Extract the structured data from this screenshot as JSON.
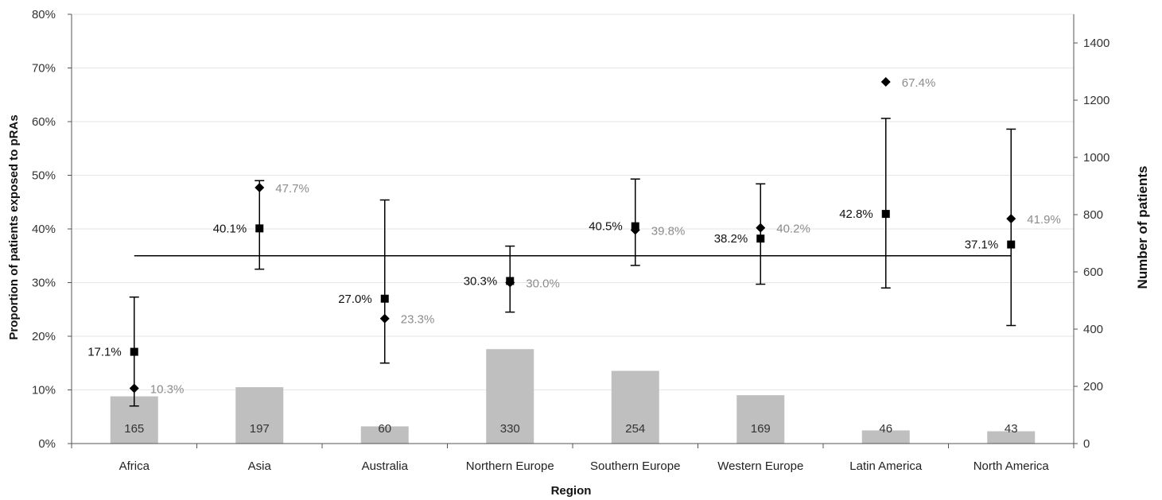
{
  "chart_data": {
    "type": "bar+scatter",
    "title": "",
    "xlabel": "Region",
    "ylabel_left": "Proportion of patients exposed to pRAs",
    "ylabel_right": "Number of patients",
    "ylim_left": [
      0,
      80
    ],
    "ylim_right": [
      0,
      1500
    ],
    "yticks_left": [
      "0%",
      "10%",
      "20%",
      "30%",
      "40%",
      "50%",
      "60%",
      "70%",
      "80%"
    ],
    "yticks_right": [
      "0",
      "200",
      "400",
      "600",
      "800",
      "1000",
      "1200",
      "1400"
    ],
    "categories": [
      "Africa",
      "Asia",
      "Australia",
      "Northern Europe",
      "Southern Europe",
      "Western Europe",
      "Latin America",
      "North America"
    ],
    "patient_counts": [
      165,
      197,
      60,
      330,
      254,
      169,
      46,
      43
    ],
    "patient_count_labels": [
      "165",
      "197",
      "60",
      "330",
      "254",
      "169",
      "46",
      "43"
    ],
    "adjusted_values": [
      17.1,
      40.1,
      27.0,
      30.3,
      40.5,
      38.2,
      42.8,
      37.1
    ],
    "adjusted_labels": [
      "17.1%",
      "40.1%",
      "27.0%",
      "30.3%",
      "40.5%",
      "38.2%",
      "42.8%",
      "37.1%"
    ],
    "ci_lower": [
      7.0,
      32.5,
      15.0,
      24.5,
      33.2,
      29.7,
      29.0,
      22.0
    ],
    "ci_upper": [
      27.3,
      49.0,
      45.4,
      36.8,
      49.3,
      48.4,
      60.6,
      58.6
    ],
    "crude_values": [
      10.3,
      47.7,
      23.3,
      30.0,
      39.8,
      40.2,
      67.4,
      41.9
    ],
    "crude_labels": [
      "10.3%",
      "47.7%",
      "23.3%",
      "30.0%",
      "39.8%",
      "40.2%",
      "67.4%",
      "41.9%"
    ],
    "reference_line": 35.0,
    "grid": true,
    "colors": {
      "bar": "#bfbfbf",
      "marker": "#000000",
      "crude_label": "#8c8c8c",
      "grid": "#e6e6e6"
    }
  }
}
